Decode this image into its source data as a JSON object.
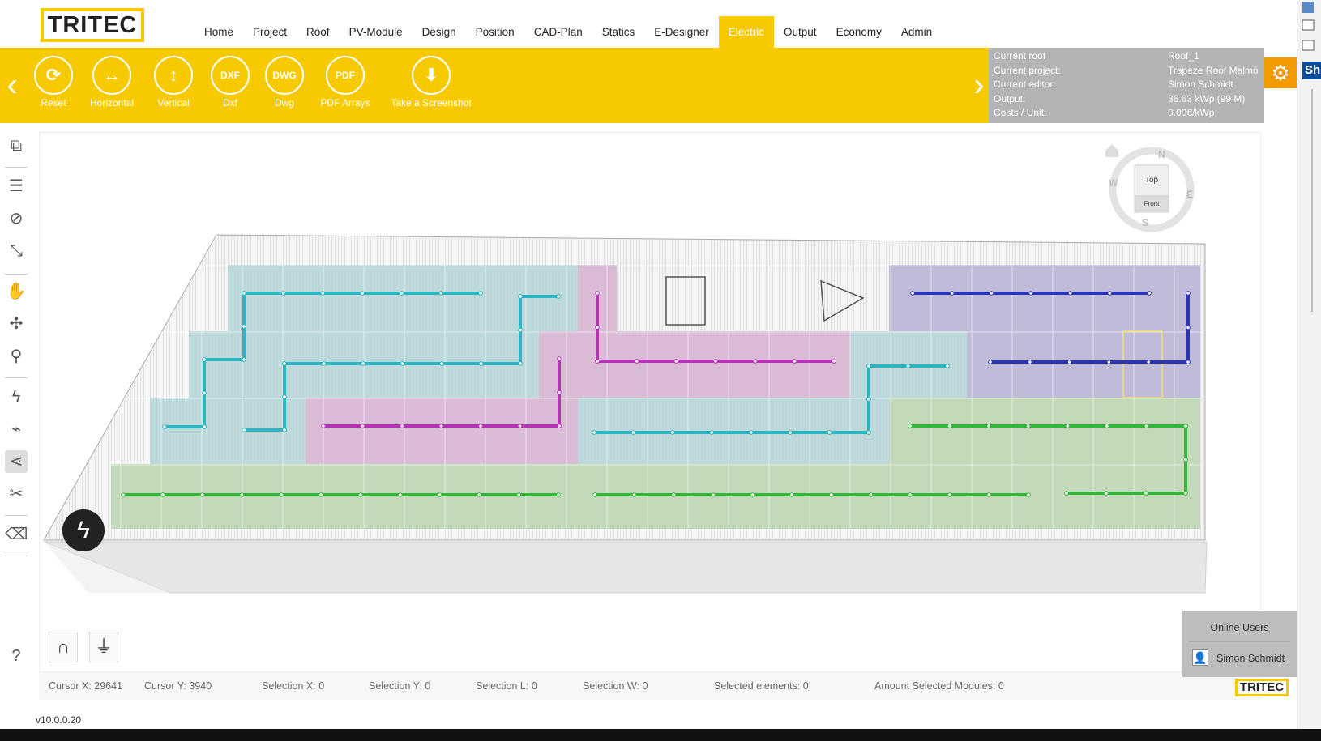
{
  "app": {
    "logo": "TRITEC",
    "version": "v10.0.0.20",
    "footer_logo": "TRITEC"
  },
  "nav": [
    "Home",
    "Project",
    "Roof",
    "PV-Module",
    "Design",
    "Position",
    "CAD-Plan",
    "Statics",
    "E-Designer",
    "Electric",
    "Output",
    "Economy",
    "Admin"
  ],
  "nav_active": "Electric",
  "toolbar": {
    "buttons": [
      {
        "label": "Reset",
        "icon": "reset-icon",
        "glyph": "⟳"
      },
      {
        "label": "Horizontal",
        "icon": "horizontal-arrows-icon",
        "glyph": "↔"
      },
      {
        "label": "Vertical",
        "icon": "vertical-arrows-icon",
        "glyph": "↕"
      },
      {
        "label": "Dxf",
        "icon": "dxf-icon",
        "glyph": "DXF"
      },
      {
        "label": "Dwg",
        "icon": "dwg-icon",
        "glyph": "DWG"
      },
      {
        "label": "PDF Arrays",
        "icon": "pdf-icon",
        "glyph": "PDF"
      },
      {
        "label": "Take a Screenshot",
        "icon": "screenshot-icon",
        "glyph": "⬇"
      }
    ]
  },
  "info": {
    "rows": [
      {
        "label": "Current roof",
        "value": "Roof_1"
      },
      {
        "label": "Current project:",
        "value": "Trapeze Roof Malmö"
      },
      {
        "label": "Current editor:",
        "value": "Simon Schmidt"
      },
      {
        "label": "Output:",
        "value": "36.63 kWp (99 M)"
      },
      {
        "label": "Costs / Unit:",
        "value": "0.00€/kWp"
      }
    ]
  },
  "right_panel": {
    "label": "Sh"
  },
  "compass": {
    "top": "Top",
    "front": "Front",
    "n": "N",
    "e": "E",
    "s": "S",
    "w": "W"
  },
  "status": {
    "cursor_x_label": "Cursor X:",
    "cursor_x": "29641",
    "cursor_y_label": "Cursor Y:",
    "cursor_y": "3940",
    "sel_x_label": "Selection X:",
    "sel_x": "0",
    "sel_y_label": "Selection Y:",
    "sel_y": "0",
    "sel_l_label": "Selection L:",
    "sel_l": "0",
    "sel_w_label": "Selection W:",
    "sel_w": "0",
    "sel_el_label": "Selected elements:",
    "sel_el": "0",
    "sel_mod_label": "Amount Selected Modules:",
    "sel_mod": "0"
  },
  "online": {
    "title": "Online Users",
    "user": "Simon Schmidt"
  },
  "colors": {
    "accent": "#f7c900",
    "teal": "#2ab5c0",
    "magenta": "#b534b5",
    "blue": "#2a35b5",
    "green": "#33b53a"
  }
}
